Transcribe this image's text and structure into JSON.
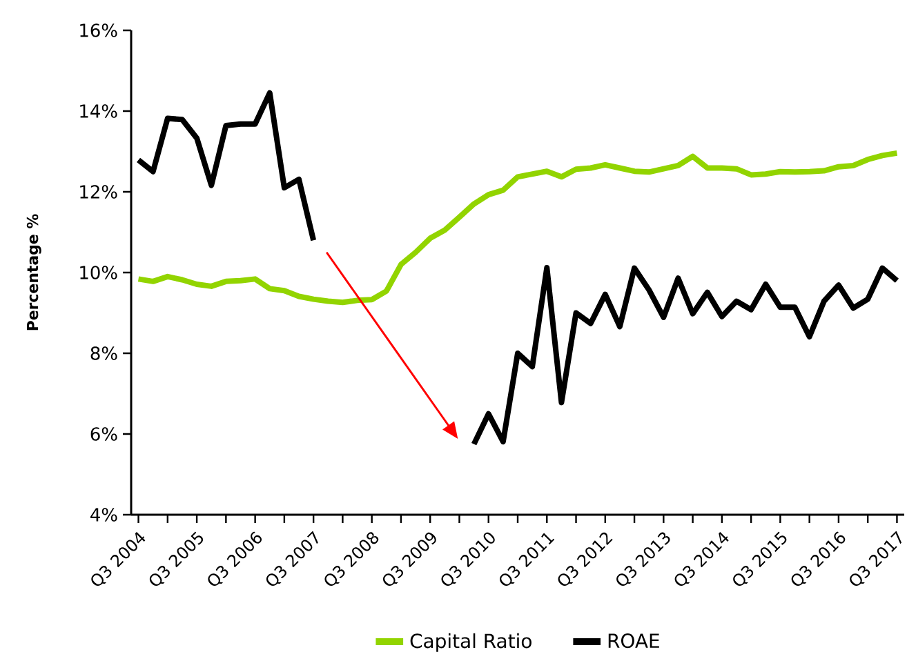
{
  "chart_data": {
    "type": "line",
    "ylabel": "Percentage %",
    "categories": [
      "Q3 2004",
      null,
      null,
      null,
      "Q3 2005",
      null,
      null,
      null,
      "Q3 2006",
      null,
      null,
      null,
      "Q3 2007",
      null,
      null,
      null,
      "Q3 2008",
      null,
      null,
      null,
      "Q3 2009",
      null,
      null,
      null,
      "Q3 2010",
      null,
      null,
      null,
      "Q3 2011",
      null,
      null,
      null,
      "Q3 2012",
      null,
      null,
      null,
      "Q3 2013",
      null,
      null,
      null,
      "Q3 2014",
      null,
      null,
      null,
      "Q3 2015",
      null,
      null,
      null,
      "Q3 2016",
      null,
      null,
      null,
      "Q3 2017"
    ],
    "series": [
      {
        "name": "Capital Ratio",
        "color": "#92d400",
        "values": [
          9.84,
          9.78,
          9.9,
          9.82,
          9.71,
          9.66,
          9.78,
          9.8,
          9.84,
          9.6,
          9.55,
          9.41,
          9.34,
          9.29,
          9.26,
          9.31,
          9.33,
          9.54,
          10.2,
          10.5,
          10.85,
          11.05,
          11.37,
          11.7,
          11.93,
          12.04,
          12.37,
          12.44,
          12.51,
          12.37,
          12.56,
          12.59,
          12.67,
          12.59,
          12.51,
          12.49,
          12.57,
          12.65,
          12.88,
          12.59,
          12.59,
          12.57,
          12.42,
          12.44,
          12.5,
          12.49,
          12.5,
          12.52,
          12.62,
          12.65,
          12.8,
          12.9,
          12.96
        ]
      },
      {
        "name": "ROAE",
        "color": "#000000",
        "values": [
          12.79,
          12.5,
          13.82,
          13.79,
          13.33,
          12.16,
          13.64,
          13.68,
          13.68,
          14.45,
          12.1,
          12.31,
          10.8,
          null,
          null,
          null,
          null,
          null,
          null,
          null,
          null,
          null,
          null,
          5.75,
          6.5,
          5.81,
          8.0,
          7.67,
          10.12,
          6.78,
          9.0,
          8.74,
          9.46,
          8.66,
          10.11,
          9.57,
          8.89,
          9.86,
          8.98,
          9.51,
          8.91,
          9.29,
          9.08,
          9.71,
          9.14,
          9.14,
          8.41,
          9.29,
          9.69,
          9.12,
          9.34,
          10.11,
          9.8
        ]
      }
    ],
    "ylim": [
      4,
      16
    ],
    "yticks": [
      {
        "value": 4,
        "label": "4%"
      },
      {
        "value": 6,
        "label": "6%"
      },
      {
        "value": 8,
        "label": "8%"
      },
      {
        "value": 10,
        "label": "10%"
      },
      {
        "value": 12,
        "label": "12%"
      },
      {
        "value": 14,
        "label": "14%"
      },
      {
        "value": 16,
        "label": "16%"
      }
    ],
    "grid": false,
    "legend": "bottom",
    "marker": "none",
    "line_style": "solid"
  }
}
